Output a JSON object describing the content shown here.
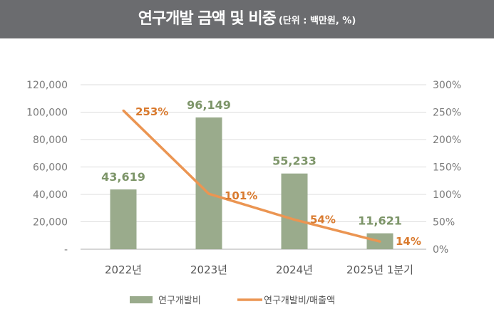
{
  "title": "연구개발 금액 및 비중",
  "subtitle": "(단위 : 백만원, %)",
  "chart_data": {
    "type": "bar+line",
    "categories": [
      "2022년",
      "2023년",
      "2024년",
      "2025년 1분기"
    ],
    "series": [
      {
        "name": "연구개발비",
        "type": "bar",
        "axis": "left",
        "values": [
          43619,
          96149,
          55233,
          11621
        ],
        "labels": [
          "43,619",
          "96,149",
          "55,233",
          "11,621"
        ],
        "color": "#9aab8c",
        "label_color": "#7d9569"
      },
      {
        "name": "연구개발비/매출액",
        "type": "line",
        "axis": "right",
        "values": [
          253,
          101,
          54,
          14
        ],
        "labels": [
          "253%",
          "101%",
          "54%",
          "14%"
        ],
        "color": "#eb9552",
        "label_color": "#d97a2e"
      }
    ],
    "y_left": {
      "range": [
        0,
        120000
      ],
      "ticks": [
        "-",
        "20,000",
        "40,000",
        "60,000",
        "80,000",
        "100,000",
        "120,000"
      ]
    },
    "y_right": {
      "range": [
        0,
        300
      ],
      "ticks": [
        "0%",
        "50%",
        "100%",
        "150%",
        "200%",
        "250%",
        "300%"
      ]
    },
    "grid": true,
    "legend_position": "bottom"
  }
}
